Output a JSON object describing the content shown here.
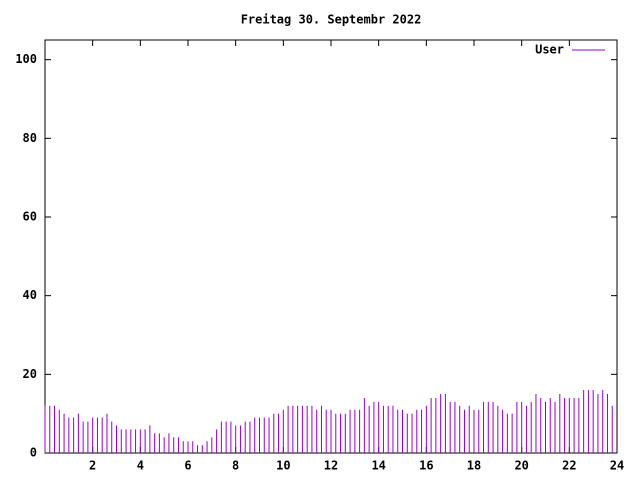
{
  "chart_data": {
    "type": "impulse",
    "title": "Freitag 30. Septembr 2022",
    "x": [
      0,
      0.2,
      0.4,
      0.6,
      0.8,
      1,
      1.2,
      1.4,
      1.6,
      1.8,
      2,
      2.2,
      2.4,
      2.6,
      2.8,
      3,
      3.2,
      3.4,
      3.6,
      3.8,
      4,
      4.2,
      4.4,
      4.6,
      4.8,
      5,
      5.2,
      5.4,
      5.6,
      5.8,
      6,
      6.2,
      6.4,
      6.6,
      6.8,
      7,
      7.2,
      7.4,
      7.6,
      7.8,
      8,
      8.2,
      8.4,
      8.6,
      8.8,
      9,
      9.2,
      9.4,
      9.6,
      9.8,
      10,
      10.2,
      10.4,
      10.6,
      10.8,
      11,
      11.2,
      11.4,
      11.6,
      11.8,
      12,
      12.2,
      12.4,
      12.6,
      12.8,
      13,
      13.2,
      13.4,
      13.6,
      13.8,
      14,
      14.2,
      14.4,
      14.6,
      14.8,
      15,
      15.2,
      15.4,
      15.6,
      15.8,
      16,
      16.2,
      16.4,
      16.6,
      16.8,
      17,
      17.2,
      17.4,
      17.6,
      17.8,
      18,
      18.2,
      18.4,
      18.6,
      18.8,
      19,
      19.2,
      19.4,
      19.6,
      19.8,
      20,
      20.2,
      20.4,
      20.6,
      20.8,
      21,
      21.2,
      21.4,
      21.6,
      21.8,
      22,
      22.2,
      22.4,
      22.6,
      22.8,
      23,
      23.2,
      23.4,
      23.6,
      23.8
    ],
    "series": [
      {
        "name": "User",
        "color": "#9400d3",
        "values": [
          12,
          12,
          12,
          11,
          10,
          9,
          9,
          10,
          8,
          8,
          9,
          9,
          9,
          10,
          8,
          7,
          6,
          6,
          6,
          6,
          6,
          6,
          7,
          5,
          5,
          4,
          5,
          4,
          4,
          3,
          3,
          3,
          2,
          2,
          3,
          4,
          6,
          8,
          8,
          8,
          7,
          7,
          8,
          8,
          9,
          9,
          9,
          9,
          10,
          10,
          11,
          12,
          12,
          12,
          12,
          12,
          12,
          11,
          12,
          11,
          11,
          10,
          10,
          10,
          11,
          11,
          11,
          14,
          12,
          13,
          13,
          12,
          12,
          12,
          11,
          11,
          10,
          10,
          11,
          11,
          12,
          14,
          14,
          15,
          15,
          13,
          13,
          12,
          11,
          12,
          11,
          11,
          13,
          13,
          13,
          12,
          11,
          10,
          10,
          13,
          13,
          12,
          13,
          15,
          14,
          13,
          14,
          13,
          15,
          14,
          14,
          14,
          14,
          16,
          16,
          16,
          15,
          16,
          15,
          12
        ]
      }
    ],
    "xlim": [
      0,
      24
    ],
    "xticks": [
      2,
      4,
      6,
      8,
      10,
      12,
      14,
      16,
      18,
      20,
      22,
      24
    ],
    "ylim": [
      0,
      105
    ],
    "yticks": [
      0,
      20,
      40,
      60,
      80,
      100
    ],
    "legend": "top-right"
  }
}
